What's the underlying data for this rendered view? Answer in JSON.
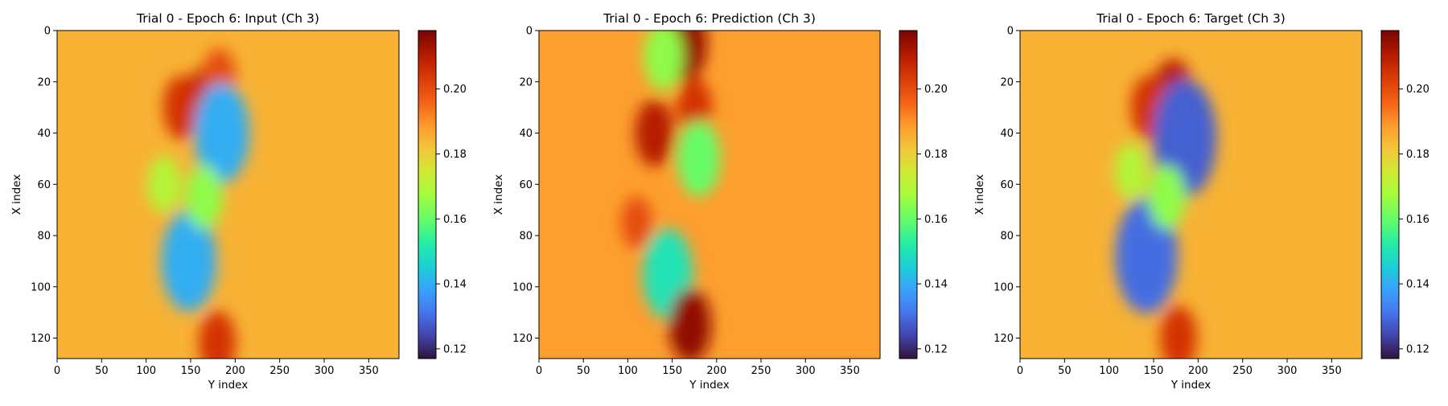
{
  "chart_data": [
    {
      "type": "heatmap",
      "title": "Trial 0 - Epoch 6: Input (Ch 3)",
      "xlabel": "Y index",
      "ylabel": "X index",
      "xlim": [
        0,
        384
      ],
      "ylim": [
        128,
        0
      ],
      "x_ticks": [
        0,
        50,
        100,
        150,
        200,
        250,
        300,
        350
      ],
      "y_ticks": [
        0,
        20,
        40,
        60,
        80,
        100,
        120
      ],
      "colorbar": {
        "range": [
          0.117,
          0.218
        ],
        "ticks": [
          "0.12",
          "0.14",
          "0.16",
          "0.18",
          "0.20"
        ],
        "colormap": "turbo"
      },
      "background_value": 0.185,
      "features": [
        {
          "x": 168,
          "y": 28,
          "value": 0.21
        },
        {
          "x": 140,
          "y": 30,
          "value": 0.205
        },
        {
          "x": 182,
          "y": 18,
          "value": 0.2
        },
        {
          "x": 185,
          "y": 40,
          "value": 0.14
        },
        {
          "x": 148,
          "y": 90,
          "value": 0.14
        },
        {
          "x": 165,
          "y": 65,
          "value": 0.165
        },
        {
          "x": 180,
          "y": 122,
          "value": 0.205
        },
        {
          "x": 120,
          "y": 60,
          "value": 0.17
        }
      ]
    },
    {
      "type": "heatmap",
      "title": "Trial 0 - Epoch 6: Prediction (Ch 3)",
      "xlabel": "Y index",
      "ylabel": "X index",
      "xlim": [
        0,
        384
      ],
      "ylim": [
        128,
        0
      ],
      "x_ticks": [
        0,
        50,
        100,
        150,
        200,
        250,
        300,
        350
      ],
      "y_ticks": [
        0,
        20,
        40,
        60,
        80,
        100,
        120
      ],
      "colorbar": {
        "range": [
          0.117,
          0.218
        ],
        "ticks": [
          "0.12",
          "0.14",
          "0.16",
          "0.18",
          "0.20"
        ],
        "colormap": "turbo"
      },
      "background_value": 0.188,
      "features": [
        {
          "x": 165,
          "y": 5,
          "value": 0.215
        },
        {
          "x": 130,
          "y": 40,
          "value": 0.21
        },
        {
          "x": 175,
          "y": 30,
          "value": 0.205
        },
        {
          "x": 180,
          "y": 50,
          "value": 0.16
        },
        {
          "x": 145,
          "y": 95,
          "value": 0.15
        },
        {
          "x": 170,
          "y": 115,
          "value": 0.215
        },
        {
          "x": 110,
          "y": 75,
          "value": 0.2
        },
        {
          "x": 140,
          "y": 10,
          "value": 0.165
        }
      ]
    },
    {
      "type": "heatmap",
      "title": "Trial 0 - Epoch 6: Target (Ch 3)",
      "xlabel": "Y index",
      "ylabel": "X index",
      "xlim": [
        0,
        384
      ],
      "ylim": [
        128,
        0
      ],
      "x_ticks": [
        0,
        50,
        100,
        150,
        200,
        250,
        300,
        350
      ],
      "y_ticks": [
        0,
        20,
        40,
        60,
        80,
        100,
        120
      ],
      "colorbar": {
        "range": [
          0.117,
          0.218
        ],
        "ticks": [
          "0.12",
          "0.14",
          "0.16",
          "0.18",
          "0.20"
        ],
        "colormap": "turbo"
      },
      "background_value": 0.185,
      "features": [
        {
          "x": 172,
          "y": 25,
          "value": 0.21
        },
        {
          "x": 145,
          "y": 30,
          "value": 0.205
        },
        {
          "x": 185,
          "y": 42,
          "value": 0.128
        },
        {
          "x": 142,
          "y": 88,
          "value": 0.13
        },
        {
          "x": 165,
          "y": 65,
          "value": 0.165
        },
        {
          "x": 178,
          "y": 120,
          "value": 0.205
        },
        {
          "x": 125,
          "y": 55,
          "value": 0.17
        }
      ]
    }
  ]
}
